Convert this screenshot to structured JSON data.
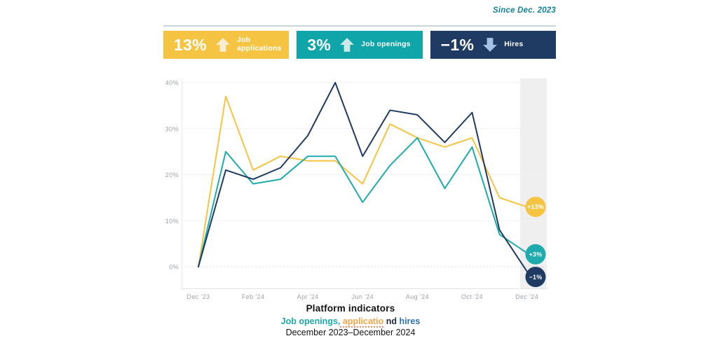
{
  "header": {
    "since": "Since Dec. 2023"
  },
  "badges": [
    {
      "value": "13%",
      "label": "Job applications",
      "direction": "up",
      "bg": "#F5C443",
      "arrow_color": "#F7EDD3",
      "icon": "arrow-up-icon"
    },
    {
      "value": "3%",
      "label": "Job openings",
      "direction": "up",
      "bg": "#10A5A9",
      "arrow_color": "#CBE9E9",
      "icon": "arrow-up-icon"
    },
    {
      "value": "−1%",
      "label": "Hires",
      "direction": "down",
      "bg": "#1F3A63",
      "arrow_color": "#A6C1E6",
      "icon": "arrow-down-icon"
    }
  ],
  "chart_data": {
    "type": "line",
    "x": [
      "Dec '23",
      "Jan '24",
      "Feb '24",
      "Mar '24",
      "Apr '24",
      "May '24",
      "Jun '24",
      "Jul '24",
      "Aug '24",
      "Sep '24",
      "Oct '24",
      "Nov '24",
      "Dec '24"
    ],
    "x_tick_indices": [
      0,
      2,
      4,
      6,
      8,
      10,
      12
    ],
    "y_ticks": [
      0,
      10,
      20,
      30,
      40
    ],
    "y_tick_suffix": "%",
    "ylim": [
      -4,
      42
    ],
    "grid": "horizontal",
    "legend_position": "none",
    "highlight_column": "Dec '24",
    "highlight_color": "#EFEFEF",
    "series": [
      {
        "name": "Job applications",
        "color": "#F5C443",
        "end_label": "+13%",
        "values": [
          0,
          37,
          21,
          24,
          23,
          23,
          18,
          31,
          28,
          26,
          28,
          15,
          13
        ]
      },
      {
        "name": "Job openings",
        "color": "#1FAAAD",
        "end_label": "+3%",
        "values": [
          0,
          25,
          18,
          19,
          24,
          24,
          14,
          22,
          28,
          17,
          26,
          7,
          3
        ]
      },
      {
        "name": "Hires",
        "color": "#1F3A63",
        "end_label": "−1%",
        "values": [
          0,
          21,
          19,
          21.5,
          28.5,
          40,
          24,
          34,
          33,
          27,
          33.5,
          8,
          -1
        ]
      }
    ]
  },
  "caption": {
    "title": "Platform indicators",
    "subtitle_segments": [
      {
        "text": "Job openings,",
        "color": "#1FA9AD"
      },
      {
        "text": " applicatio",
        "color": "#F4A546",
        "underline": "dotted"
      },
      {
        "text": " nd ",
        "color": "#1D2A3A"
      },
      {
        "text": "hires",
        "color": "#2F73B6"
      }
    ],
    "period": "December 2023–December 2024"
  }
}
